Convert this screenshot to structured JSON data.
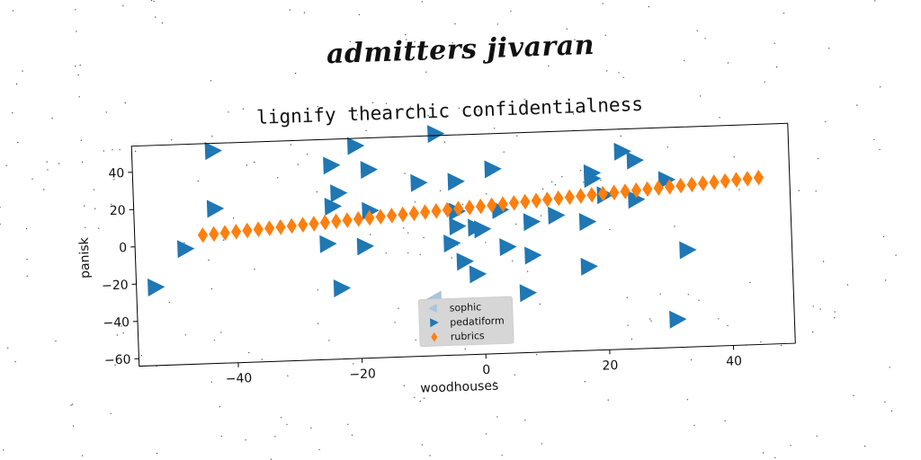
{
  "overtitle": "admitters jivaran",
  "chart_data": {
    "type": "scatter",
    "title": "lignify thearchic confidentialness",
    "xlabel": "woodhouses",
    "ylabel": "panisk",
    "xlim": [
      -56,
      50
    ],
    "ylim": [
      -64,
      54
    ],
    "xticks": [
      -40,
      -20,
      0,
      20,
      40
    ],
    "yticks": [
      -60,
      -40,
      -20,
      0,
      20,
      40
    ],
    "grid": false,
    "legend_position": "bottom-center",
    "series": [
      {
        "name": "sophic",
        "marker": "triangle-left",
        "color": "#a9c4dd",
        "points": [
          [
            -8,
            -34
          ]
        ]
      },
      {
        "name": "pedatiform",
        "marker": "triangle-right",
        "color": "#1f77b4",
        "points": [
          [
            -43,
            50
          ],
          [
            -20,
            50
          ],
          [
            -24,
            40
          ],
          [
            -18,
            37
          ],
          [
            -7,
            55
          ],
          [
            -10,
            29
          ],
          [
            -4,
            29
          ],
          [
            2,
            35
          ],
          [
            23,
            42
          ],
          [
            25,
            37
          ],
          [
            18,
            31
          ],
          [
            18,
            28
          ],
          [
            30,
            26
          ],
          [
            20,
            19
          ],
          [
            25,
            16
          ],
          [
            -43,
            19
          ],
          [
            -23,
            25
          ],
          [
            -24,
            18
          ],
          [
            -18,
            15
          ],
          [
            -4,
            13
          ],
          [
            3,
            13
          ],
          [
            -48,
            -2
          ],
          [
            -25,
            -2
          ],
          [
            -19,
            -4
          ],
          [
            -4,
            5
          ],
          [
            -1,
            4
          ],
          [
            0,
            3
          ],
          [
            -5,
            -4
          ],
          [
            4,
            -7
          ],
          [
            8,
            -12
          ],
          [
            -3,
            -14
          ],
          [
            -1,
            -21
          ],
          [
            17,
            5
          ],
          [
            12,
            9
          ],
          [
            8,
            6
          ],
          [
            17,
            -19
          ],
          [
            7,
            -32
          ],
          [
            -23,
            -26
          ],
          [
            -53,
            -22
          ],
          [
            33,
            -12
          ],
          [
            31,
            -49
          ]
        ]
      },
      {
        "name": "rubrics",
        "marker": "diamond",
        "color": "#ff7f0e",
        "points": [
          [
            -45.0,
            5.0
          ],
          [
            -43.2,
            5.41
          ],
          [
            -41.4,
            5.82
          ],
          [
            -39.6,
            6.23
          ],
          [
            -37.8,
            6.64
          ],
          [
            -36.0,
            7.04
          ],
          [
            -34.2,
            7.45
          ],
          [
            -32.4,
            7.86
          ],
          [
            -30.6,
            8.27
          ],
          [
            -28.8,
            8.68
          ],
          [
            -27.0,
            9.09
          ],
          [
            -25.2,
            9.5
          ],
          [
            -23.4,
            9.91
          ],
          [
            -21.6,
            10.32
          ],
          [
            -19.8,
            10.72
          ],
          [
            -18.0,
            11.13
          ],
          [
            -16.2,
            11.54
          ],
          [
            -14.4,
            11.95
          ],
          [
            -12.6,
            12.36
          ],
          [
            -10.8,
            12.77
          ],
          [
            -9.0,
            13.18
          ],
          [
            -7.2,
            13.59
          ],
          [
            -5.4,
            14.0
          ],
          [
            -3.6,
            14.41
          ],
          [
            -1.8,
            14.82
          ],
          [
            0.0,
            15.22
          ],
          [
            1.8,
            15.63
          ],
          [
            3.6,
            16.04
          ],
          [
            5.4,
            16.45
          ],
          [
            7.2,
            16.86
          ],
          [
            9.0,
            17.27
          ],
          [
            10.8,
            17.68
          ],
          [
            12.6,
            18.09
          ],
          [
            14.4,
            18.5
          ],
          [
            16.2,
            18.91
          ],
          [
            18.0,
            19.32
          ],
          [
            19.8,
            19.72
          ],
          [
            21.6,
            20.13
          ],
          [
            23.4,
            20.54
          ],
          [
            25.2,
            20.95
          ],
          [
            27.0,
            21.36
          ],
          [
            28.8,
            21.77
          ],
          [
            30.6,
            22.18
          ],
          [
            32.4,
            22.59
          ],
          [
            34.2,
            23.0
          ],
          [
            36.0,
            23.41
          ],
          [
            37.8,
            23.82
          ],
          [
            39.6,
            24.23
          ],
          [
            41.4,
            24.64
          ],
          [
            43.2,
            25.05
          ],
          [
            45.0,
            25.46
          ]
        ]
      }
    ]
  }
}
